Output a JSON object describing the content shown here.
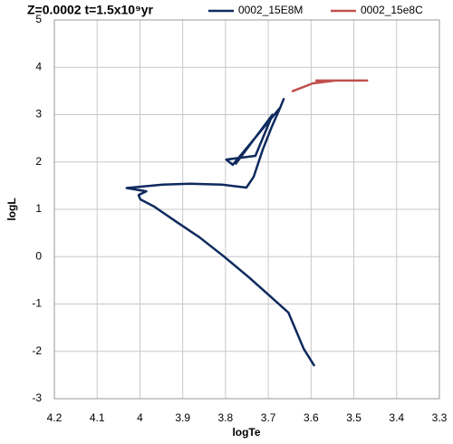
{
  "chart_data": {
    "type": "line",
    "title": "Z=0.0002 t=1.5x10⁹yr",
    "x_label": "logTe",
    "y_label": "logL",
    "xlim": [
      4.2,
      3.3
    ],
    "xticks": [
      4.2,
      4.1,
      4,
      3.9,
      3.8,
      3.7,
      3.6,
      3.5,
      3.4,
      3.3
    ],
    "ylim": [
      -3,
      5
    ],
    "yticks": [
      -3,
      -2,
      -1,
      0,
      1,
      2,
      3,
      4,
      5
    ],
    "grid": true,
    "legend": "top",
    "series": [
      {
        "name": "0002_15E8M",
        "color": "#0e2a5e",
        "x": [
          3.592,
          3.617,
          3.653,
          3.7,
          3.745,
          3.806,
          3.861,
          3.914,
          3.967,
          3.999,
          4.003,
          3.985,
          4.031,
          3.947,
          3.883,
          3.808,
          3.751,
          3.734,
          3.713,
          3.692,
          3.672,
          3.664,
          3.672,
          3.783,
          3.798,
          3.73,
          3.69,
          3.777
        ],
        "values": [
          -2.31,
          -1.95,
          -1.18,
          -0.8,
          -0.44,
          0.02,
          0.41,
          0.73,
          1.06,
          1.21,
          1.3,
          1.38,
          1.45,
          1.52,
          1.54,
          1.52,
          1.46,
          1.69,
          2.26,
          2.74,
          3.15,
          3.33,
          3.15,
          1.94,
          2.05,
          2.13,
          3.0,
          1.95
        ]
      },
      {
        "name": "0002_15e8C",
        "color": "#c0504d",
        "x": [
          3.645,
          3.596,
          3.543,
          3.469,
          3.59
        ],
        "values": [
          3.49,
          3.66,
          3.72,
          3.72,
          3.72
        ]
      }
    ]
  }
}
